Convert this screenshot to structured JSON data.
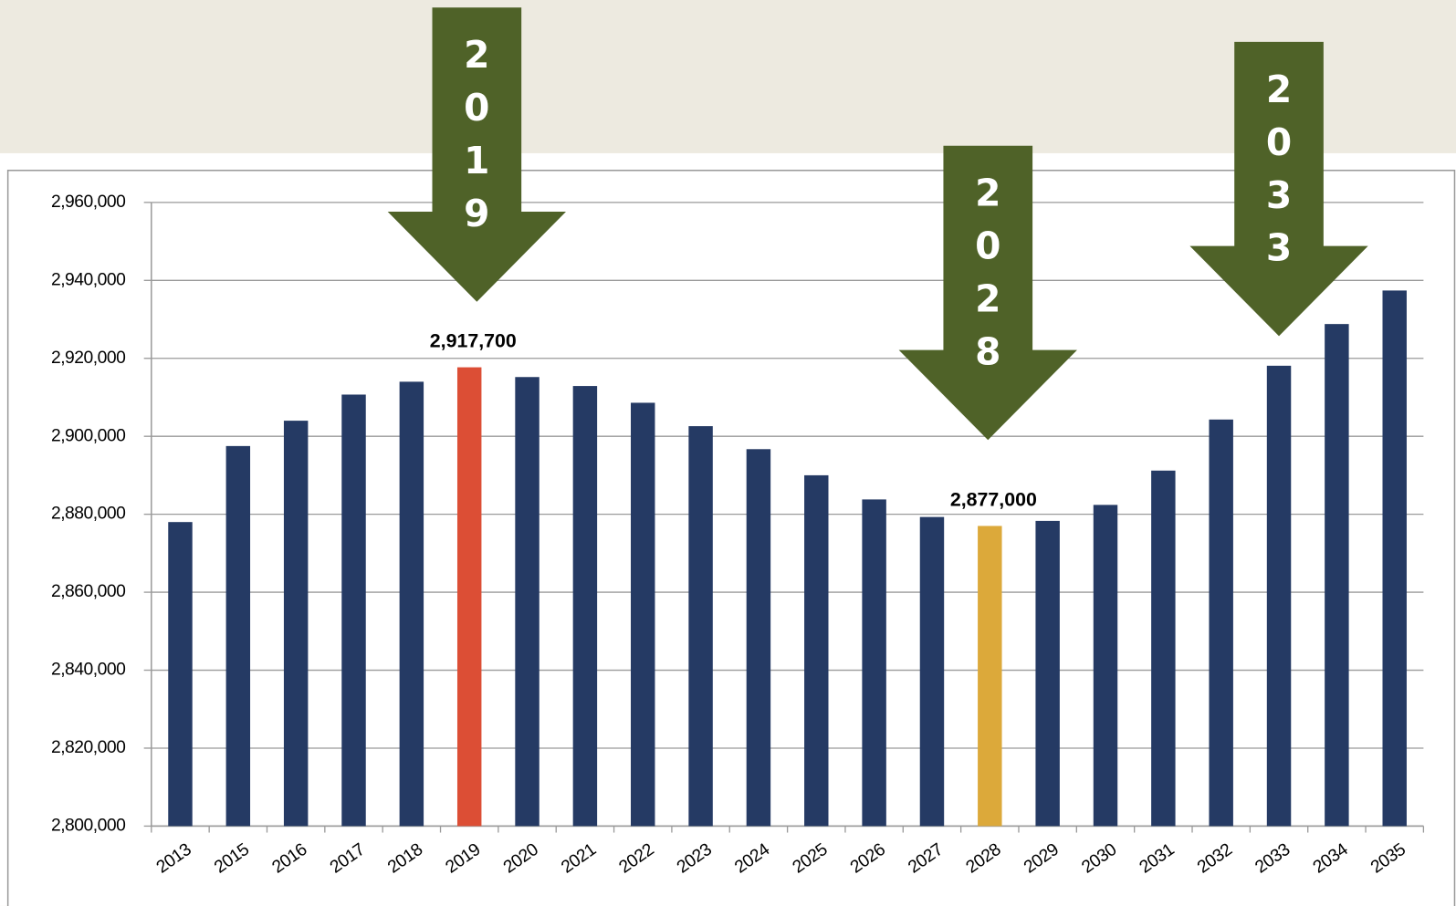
{
  "chart_data": {
    "type": "bar",
    "categories": [
      "2013",
      "2015",
      "2016",
      "2017",
      "2018",
      "2019",
      "2020",
      "2021",
      "2022",
      "2023",
      "2024",
      "2025",
      "2026",
      "2027",
      "2028",
      "2029",
      "2030",
      "2031",
      "2032",
      "2033",
      "2034",
      "2035"
    ],
    "values": [
      2878000,
      2897500,
      2904000,
      2910700,
      2914000,
      2917700,
      2915200,
      2912900,
      2908600,
      2902600,
      2896700,
      2890000,
      2883800,
      2879300,
      2877000,
      2878300,
      2882400,
      2891200,
      2904300,
      2918100,
      2928800,
      2937400
    ],
    "value_labels": [
      null,
      null,
      null,
      null,
      null,
      "2,917,700",
      null,
      null,
      null,
      null,
      null,
      null,
      null,
      null,
      "2,877,000",
      null,
      null,
      null,
      null,
      null,
      null,
      null
    ],
    "colors": [
      "#253a64",
      "#253a64",
      "#253a64",
      "#253a64",
      "#253a64",
      "#dc4e35",
      "#253a64",
      "#253a64",
      "#253a64",
      "#253a64",
      "#253a64",
      "#253a64",
      "#253a64",
      "#253a64",
      "#dca93a",
      "#253a64",
      "#253a64",
      "#253a64",
      "#253a64",
      "#253a64",
      "#253a64",
      "#253a64"
    ],
    "ylim": [
      2800000,
      2960000
    ],
    "yticks": [
      {
        "value": 2800000,
        "label": "2,800,000"
      },
      {
        "value": 2820000,
        "label": "2,820,000"
      },
      {
        "value": 2840000,
        "label": "2,840,000"
      },
      {
        "value": 2860000,
        "label": "2,860,000"
      },
      {
        "value": 2880000,
        "label": "2,880,000"
      },
      {
        "value": 2900000,
        "label": "2,900,000"
      },
      {
        "value": 2920000,
        "label": "2,920,000"
      },
      {
        "value": 2940000,
        "label": "2,940,000"
      },
      {
        "value": 2960000,
        "label": "2,960,000"
      }
    ],
    "grid": true,
    "annotations": [
      "2019",
      "2028",
      "2033"
    ],
    "annotation_color": "#4f6228"
  }
}
